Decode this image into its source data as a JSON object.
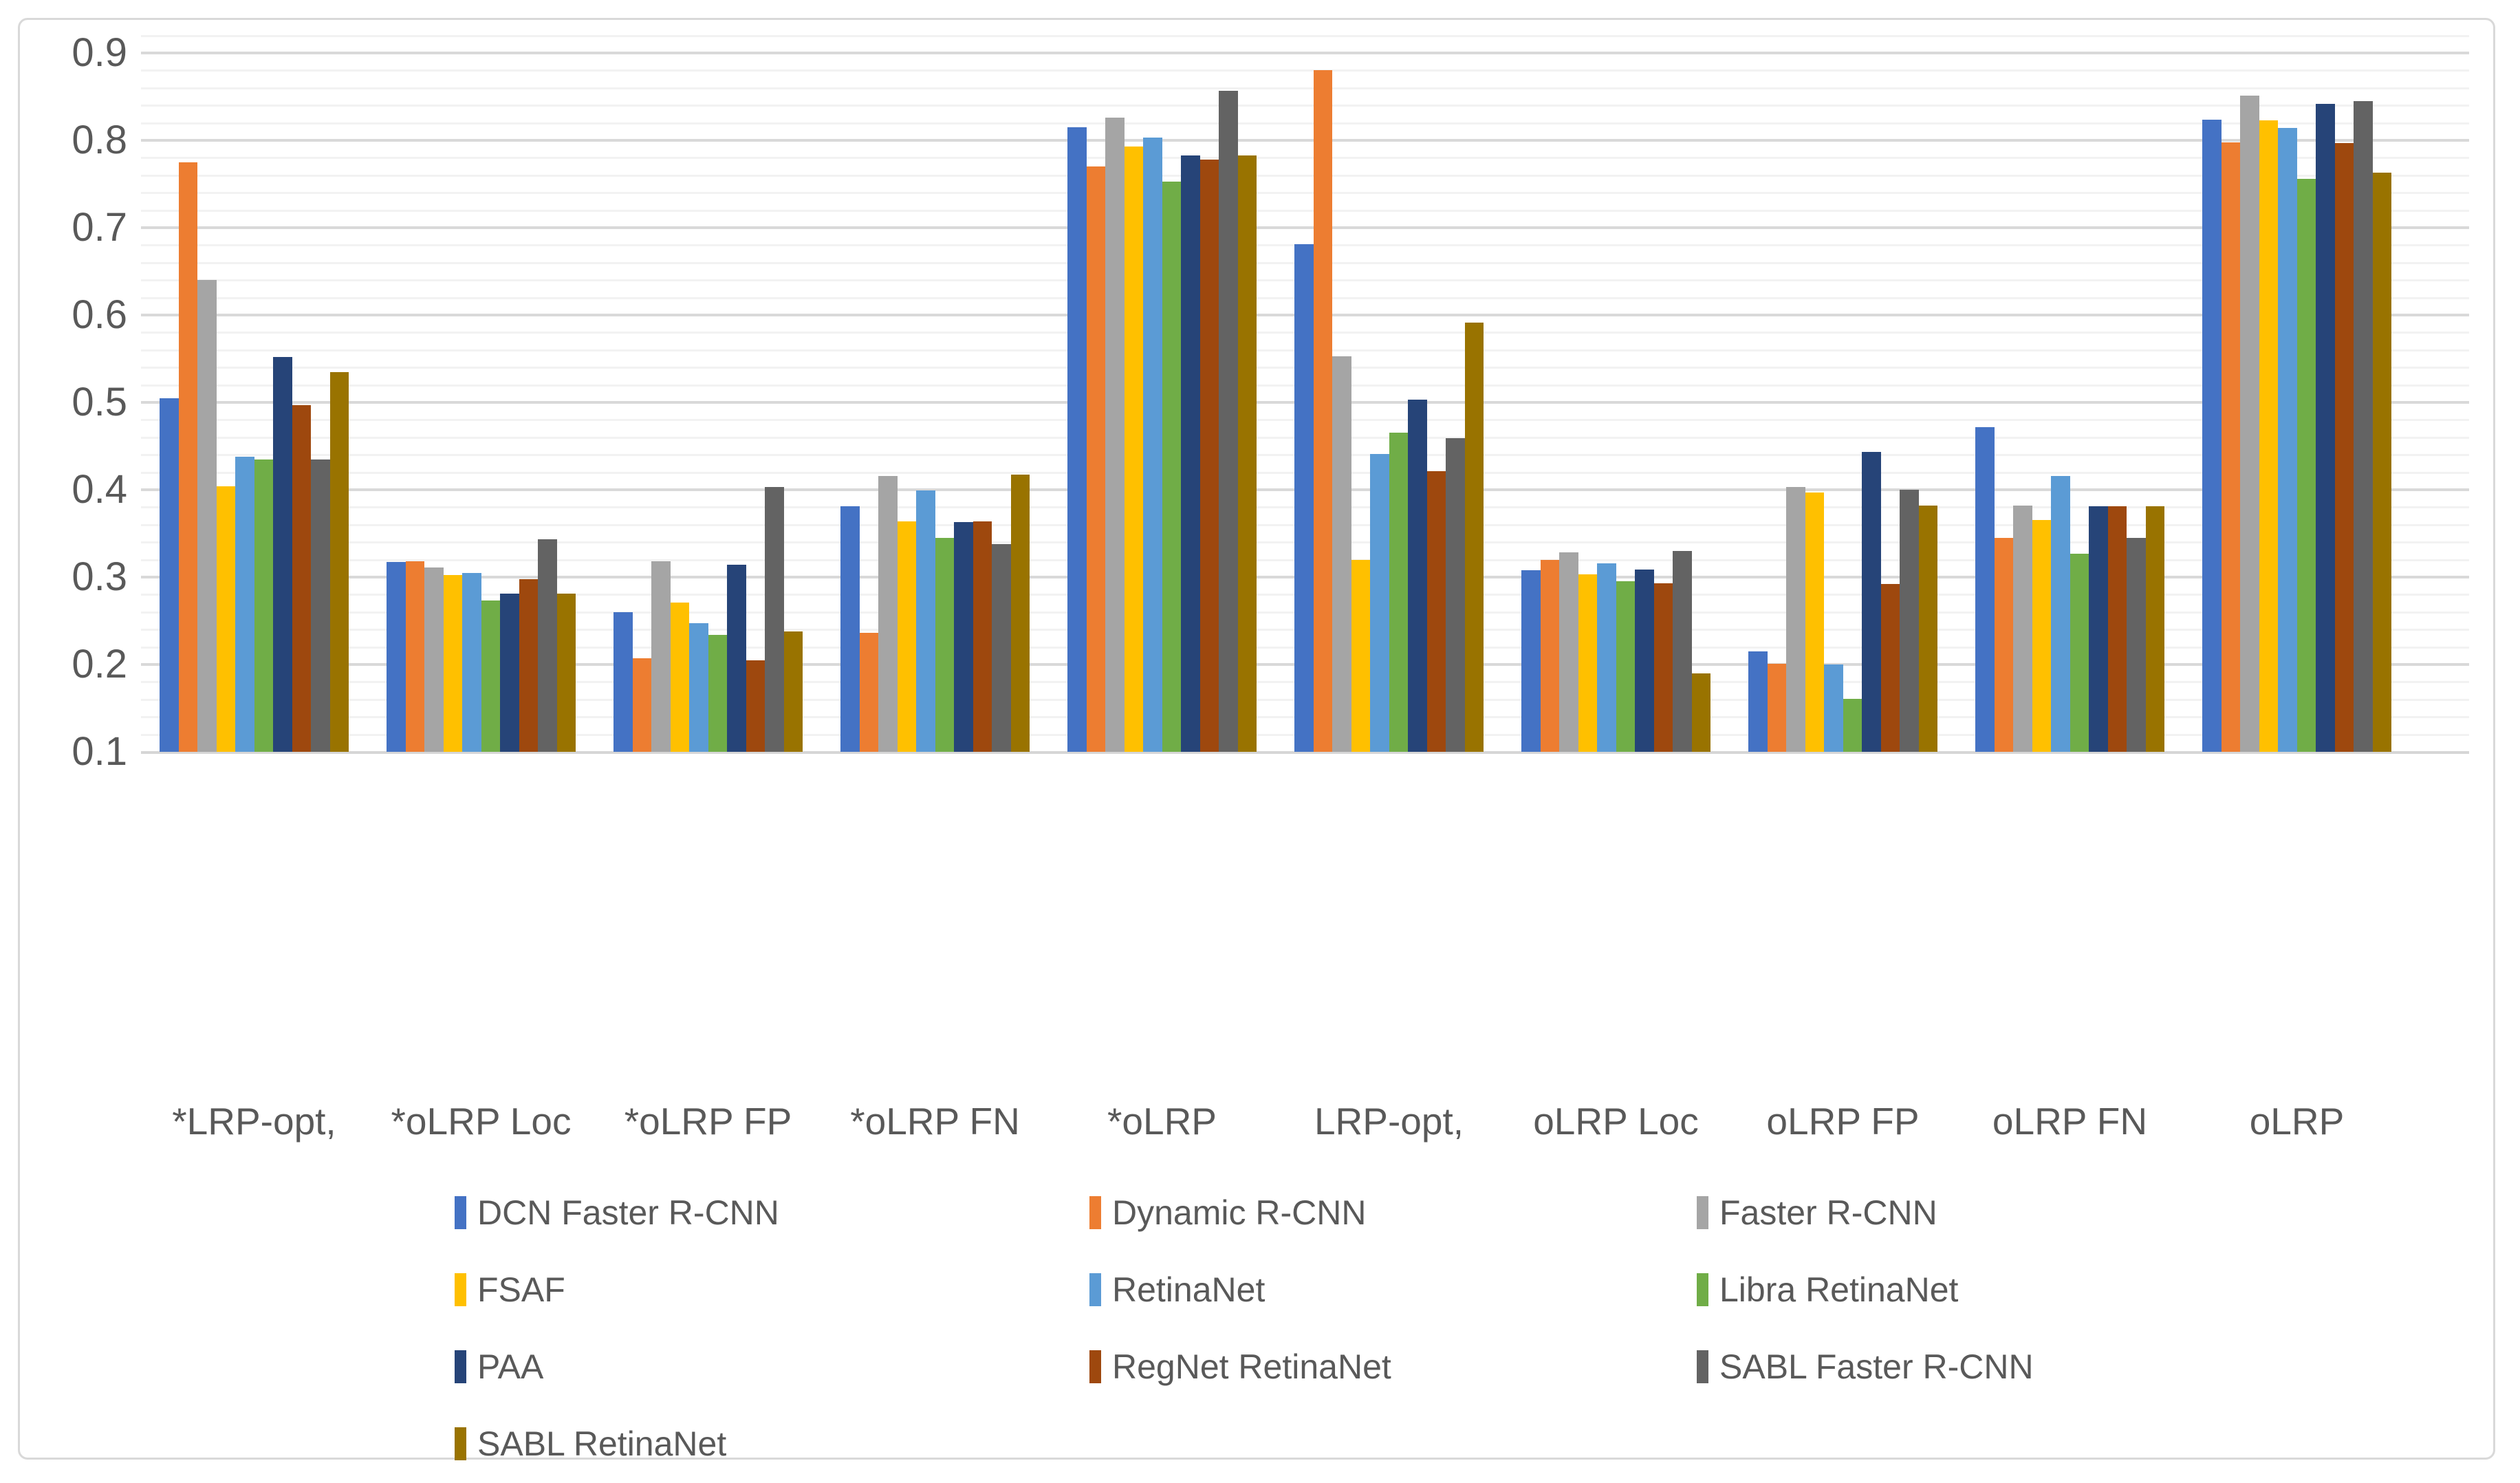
{
  "chart_data": {
    "type": "bar",
    "title": "",
    "xlabel": "",
    "ylabel": "",
    "categories": [
      "*LRP-opt,",
      "*oLRP Loc",
      "*oLRP FP",
      "*oLRP FN",
      "*oLRP",
      "LRP-opt,",
      "oLRP Loc",
      "oLRP FP",
      "oLRP FN",
      "oLRP"
    ],
    "series": [
      {
        "name": "DCN Faster R-CNN",
        "color": "#4472C4",
        "values": [
          0.505,
          0.317,
          0.26,
          0.381,
          0.815,
          0.681,
          0.308,
          0.215,
          0.472,
          0.824
        ]
      },
      {
        "name": "Dynamic R-CNN",
        "color": "#ED7D31",
        "values": [
          0.775,
          0.318,
          0.207,
          0.236,
          0.77,
          0.88,
          0.32,
          0.201,
          0.345,
          0.798
        ]
      },
      {
        "name": "Faster R-CNN",
        "color": "#A5A5A5",
        "values": [
          0.64,
          0.311,
          0.318,
          0.416,
          0.826,
          0.553,
          0.328,
          0.403,
          0.382,
          0.851
        ]
      },
      {
        "name": "FSAF",
        "color": "#FFC000",
        "values": [
          0.404,
          0.302,
          0.271,
          0.364,
          0.793,
          0.32,
          0.303,
          0.397,
          0.365,
          0.823
        ]
      },
      {
        "name": "RetinaNet",
        "color": "#5B9BD5",
        "values": [
          0.438,
          0.305,
          0.247,
          0.399,
          0.803,
          0.441,
          0.316,
          0.2,
          0.416,
          0.814
        ]
      },
      {
        "name": "Libra RetinaNet",
        "color": "#70AD47",
        "values": [
          0.435,
          0.273,
          0.234,
          0.345,
          0.753,
          0.465,
          0.295,
          0.161,
          0.327,
          0.756
        ]
      },
      {
        "name": "PAA",
        "color": "#264478",
        "values": [
          0.552,
          0.281,
          0.314,
          0.363,
          0.783,
          0.503,
          0.309,
          0.443,
          0.381,
          0.842
        ]
      },
      {
        "name": "RegNet RetinaNet",
        "color": "#9E480E",
        "values": [
          0.497,
          0.298,
          0.205,
          0.364,
          0.778,
          0.421,
          0.293,
          0.292,
          0.381,
          0.797
        ]
      },
      {
        "name": "SABL Faster R-CNN",
        "color": "#636363",
        "values": [
          0.435,
          0.343,
          0.403,
          0.338,
          0.857,
          0.459,
          0.33,
          0.4,
          0.345,
          0.845
        ]
      },
      {
        "name": "SABL RetinaNet",
        "color": "#997300",
        "values": [
          0.535,
          0.281,
          0.238,
          0.417,
          0.783,
          0.591,
          0.19,
          0.382,
          0.381,
          0.763
        ]
      }
    ],
    "y_axis": {
      "min": 0.1,
      "max": 0.925,
      "major_step": 0.1,
      "minor_step": 0.02,
      "tick_labels": [
        "0.1",
        "0.2",
        "0.3",
        "0.4",
        "0.5",
        "0.6",
        "0.7",
        "0.8",
        "0.9"
      ]
    },
    "grid": "horizontal major and minor gridlines",
    "legend_position": "bottom",
    "legend_columns": 3
  },
  "style": {
    "background": "#FFFFFF",
    "frame_border": "#D9D9D9",
    "grid_major": "#D9D9D9",
    "grid_minor": "#F2F2F2",
    "axis_line": "#D6D6D6",
    "text_color": "#595959"
  }
}
